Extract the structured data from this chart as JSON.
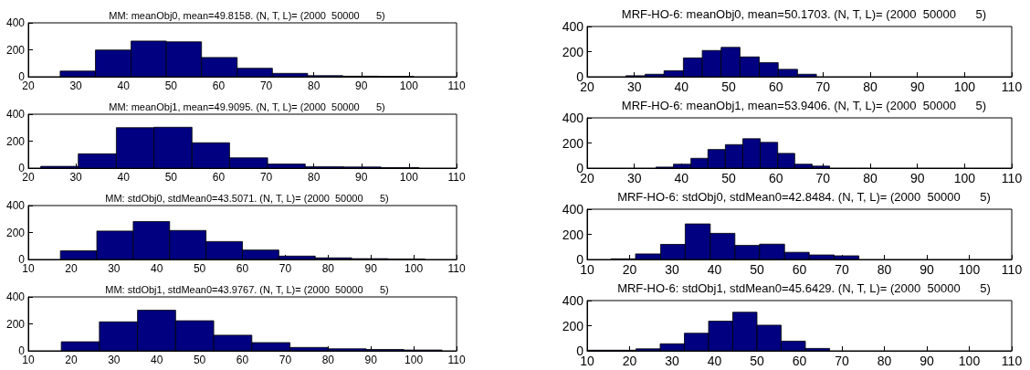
{
  "chart_data": [
    {
      "type": "histogram",
      "title": "MM: meanObj0, mean=49.8158. (N, T, L)= (2000  50000      5)",
      "bins": [
        26.7,
        34.1,
        41.6,
        49.0,
        56.4,
        63.9,
        71.3,
        78.7,
        86.1,
        93.6,
        101.0
      ],
      "values": [
        42,
        198,
        265,
        259,
        143,
        63,
        25,
        8,
        4,
        2
      ],
      "color": "#000080",
      "xlim": [
        20,
        110
      ],
      "xticks": [
        20,
        30,
        40,
        50,
        60,
        70,
        80,
        90,
        100,
        110
      ],
      "ylim": [
        0,
        400
      ],
      "yticks": [
        0,
        200,
        400
      ]
    },
    {
      "type": "histogram",
      "title": "MRF-HO-6: meanObj0, mean=50.1703. (N, T, L)= (2000  50000      5)",
      "bins": [
        28.2,
        32.3,
        36.3,
        40.4,
        44.4,
        48.4,
        52.4,
        56.5,
        60.5,
        64.6,
        68.6
      ],
      "values": [
        8,
        20,
        48,
        150,
        209,
        234,
        158,
        112,
        59,
        20
      ],
      "color": "#000080",
      "xlim": [
        20,
        110
      ],
      "xticks": [
        20,
        30,
        40,
        50,
        60,
        70,
        80,
        90,
        100,
        110
      ],
      "ylim": [
        0,
        400
      ],
      "yticks": [
        0,
        200,
        400
      ]
    },
    {
      "type": "histogram",
      "title": "MM: meanObj1, mean=49.9095. (N, T, L)= (2000  50000      5)",
      "bins": [
        22.6,
        30.5,
        38.5,
        46.4,
        54.4,
        62.3,
        70.3,
        78.2,
        86.2,
        94.1,
        102.1
      ],
      "values": [
        13,
        106,
        300,
        303,
        188,
        76,
        30,
        11,
        8,
        4
      ],
      "color": "#000080",
      "xlim": [
        20,
        110
      ],
      "xticks": [
        20,
        30,
        40,
        50,
        60,
        70,
        80,
        90,
        100,
        110
      ],
      "ylim": [
        0,
        400
      ],
      "yticks": [
        0,
        200,
        400
      ]
    },
    {
      "type": "histogram",
      "title": "MRF-HO-6: meanObj1, mean=53.9406. (N, T, L)= (2000  50000      5)",
      "bins": [
        34.6,
        38.3,
        42.0,
        45.6,
        49.3,
        53.0,
        56.7,
        60.4,
        64.0,
        67.7,
        71.4
      ],
      "values": [
        8,
        31,
        78,
        148,
        187,
        234,
        205,
        117,
        31,
        16
      ],
      "color": "#000080",
      "xlim": [
        20,
        110
      ],
      "xticks": [
        20,
        30,
        40,
        50,
        60,
        70,
        80,
        90,
        100,
        110
      ],
      "ylim": [
        0,
        400
      ],
      "yticks": [
        0,
        200,
        400
      ]
    },
    {
      "type": "histogram",
      "title": "MM: stdObj0, stdMean0=43.5071. (N, T, L)= (2000  50000      5)",
      "bins": [
        17.5,
        26.0,
        34.5,
        43.0,
        51.5,
        60.0,
        68.5,
        77.0,
        85.5,
        94.0,
        102.6
      ],
      "values": [
        64,
        211,
        281,
        215,
        133,
        70,
        25,
        12,
        6,
        3
      ],
      "color": "#000080",
      "xlim": [
        10,
        110
      ],
      "xticks": [
        10,
        20,
        30,
        40,
        50,
        60,
        70,
        80,
        90,
        100,
        110
      ],
      "ylim": [
        0,
        400
      ],
      "yticks": [
        0,
        200,
        400
      ]
    },
    {
      "type": "histogram",
      "title": "MRF-HO-6: stdObj0, stdMean0=42.8484. (N, T, L)= (2000  50000      5)",
      "bins": [
        15.6,
        21.4,
        27.3,
        33.1,
        39.0,
        44.8,
        50.6,
        56.5,
        62.3,
        68.2,
        74.0
      ],
      "values": [
        5,
        44,
        120,
        283,
        208,
        112,
        122,
        57,
        36,
        29
      ],
      "color": "#000080",
      "xlim": [
        10,
        110
      ],
      "xticks": [
        10,
        20,
        30,
        40,
        50,
        60,
        70,
        80,
        90,
        100,
        110
      ],
      "ylim": [
        0,
        400
      ],
      "yticks": [
        0,
        200,
        400
      ]
    },
    {
      "type": "histogram",
      "title": "MM: stdObj1, stdMean0=43.9767. (N, T, L)= (2000  50000      5)",
      "bins": [
        17.7,
        26.6,
        35.5,
        44.4,
        53.3,
        62.2,
        71.1,
        80.0,
        88.9,
        97.7,
        106.6
      ],
      "values": [
        67,
        215,
        301,
        223,
        116,
        61,
        25,
        15,
        10,
        6
      ],
      "color": "#000080",
      "xlim": [
        10,
        110
      ],
      "xticks": [
        10,
        20,
        30,
        40,
        50,
        60,
        70,
        80,
        90,
        100,
        110
      ],
      "ylim": [
        0,
        400
      ],
      "yticks": [
        0,
        200,
        400
      ]
    },
    {
      "type": "histogram",
      "title": "MRF-HO-6: stdObj1, stdMean0=45.6429. (N, T, L)= (2000  50000      5)",
      "bins": [
        10.0,
        15.7,
        21.5,
        27.2,
        32.9,
        38.6,
        44.3,
        50.0,
        55.7,
        61.4,
        67.1
      ],
      "values": [
        5,
        5,
        16,
        56,
        140,
        236,
        307,
        204,
        77,
        19
      ],
      "color": "#000080",
      "xlim": [
        10,
        110
      ],
      "xticks": [
        10,
        20,
        30,
        40,
        50,
        60,
        70,
        80,
        90,
        100,
        110
      ],
      "ylim": [
        0,
        400
      ],
      "yticks": [
        0,
        200,
        400
      ]
    }
  ]
}
